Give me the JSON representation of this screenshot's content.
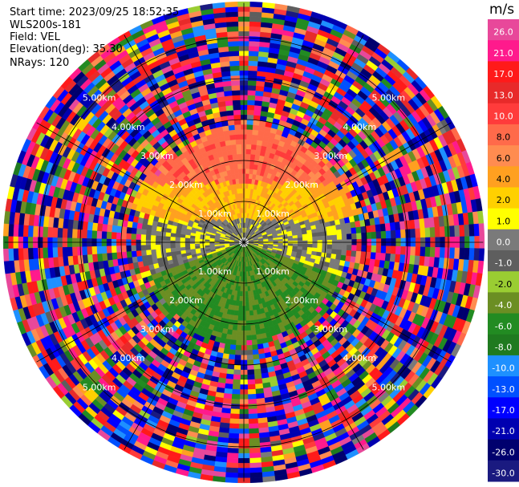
{
  "header": {
    "start_time": "Start time: 2023/09/25 18:52:35",
    "instrument": "WLS200s-181",
    "field": "Field: VEL",
    "elevation": "Elevation(deg): 35.30",
    "nrays": "NRays: 120"
  },
  "chart_data": {
    "type": "heatmap",
    "projection": "polar PPI",
    "field": "VEL",
    "units": "m/s",
    "n_rays": 120,
    "range_rings_km": [
      1.0,
      2.0,
      3.0,
      4.0,
      5.0
    ],
    "ring_labels": [
      "1.00km",
      "2.00km",
      "3.00km",
      "4.00km",
      "5.00km"
    ],
    "max_range_km": 5.85,
    "near_field": {
      "north_upper_band_ms": 8.0,
      "north_mid_band_ms": 3.0,
      "east_west_band_ms": 0.0,
      "south_band_ms": -5.0,
      "clean_radius_km": 2.5
    },
    "colorbar": {
      "label": "m/s",
      "ticks": [
        "26.0",
        "21.0",
        "17.0",
        "13.0",
        "10.0",
        "8.0",
        "6.0",
        "4.0",
        "2.0",
        "1.0",
        "0.0",
        "-1.0",
        "-2.0",
        "-4.0",
        "-6.0",
        "-8.0",
        "-10.0",
        "-13.0",
        "-17.0",
        "-21.0",
        "-26.0",
        "-30.0"
      ],
      "colors": [
        "#e8489a",
        "#ff1a8c",
        "#ff1a1a",
        "#e82a2a",
        "#ff3b3b",
        "#ff6a4a",
        "#ff8c50",
        "#ffa020",
        "#ffd000",
        "#ffff00",
        "#7a7a7a",
        "#5e5e5e",
        "#9acd32",
        "#6b8e23",
        "#228b22",
        "#1f7a1f",
        "#1e90ff",
        "#0050ff",
        "#0000ff",
        "#0000b0",
        "#00006e",
        "#1a1a80"
      ]
    }
  }
}
